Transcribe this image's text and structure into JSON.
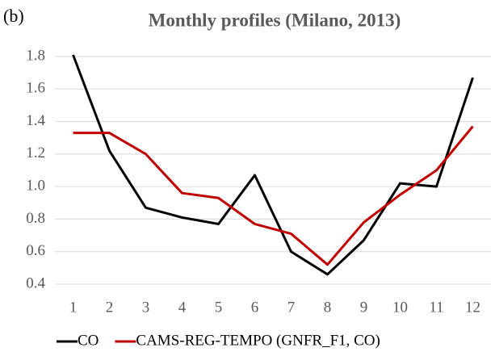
{
  "chart_data": {
    "type": "line",
    "panel_label": "(b)",
    "title": "Monthly profiles (Milano, 2013)",
    "categories": [
      "1",
      "2",
      "3",
      "4",
      "5",
      "6",
      "7",
      "8",
      "9",
      "10",
      "11",
      "12"
    ],
    "series": [
      {
        "name": "CO",
        "color": "#000000",
        "values": [
          1.81,
          1.22,
          0.87,
          0.81,
          0.77,
          1.07,
          0.6,
          0.46,
          0.67,
          1.02,
          1.0,
          1.67
        ]
      },
      {
        "name": "CAMS-REG-TEMPO (GNFR_F1, CO)",
        "color": "#c00000",
        "values": [
          1.33,
          1.33,
          1.2,
          0.96,
          0.93,
          0.77,
          0.71,
          0.52,
          0.78,
          0.95,
          1.1,
          1.37
        ]
      }
    ],
    "ylim": [
      0.4,
      1.8
    ],
    "yticks": [
      0.4,
      0.6,
      0.8,
      {
        "value": 1,
        "label": "1.0"
      },
      1.2,
      1.4,
      1.6,
      1.8
    ],
    "grid": true,
    "legend": "bottom"
  }
}
